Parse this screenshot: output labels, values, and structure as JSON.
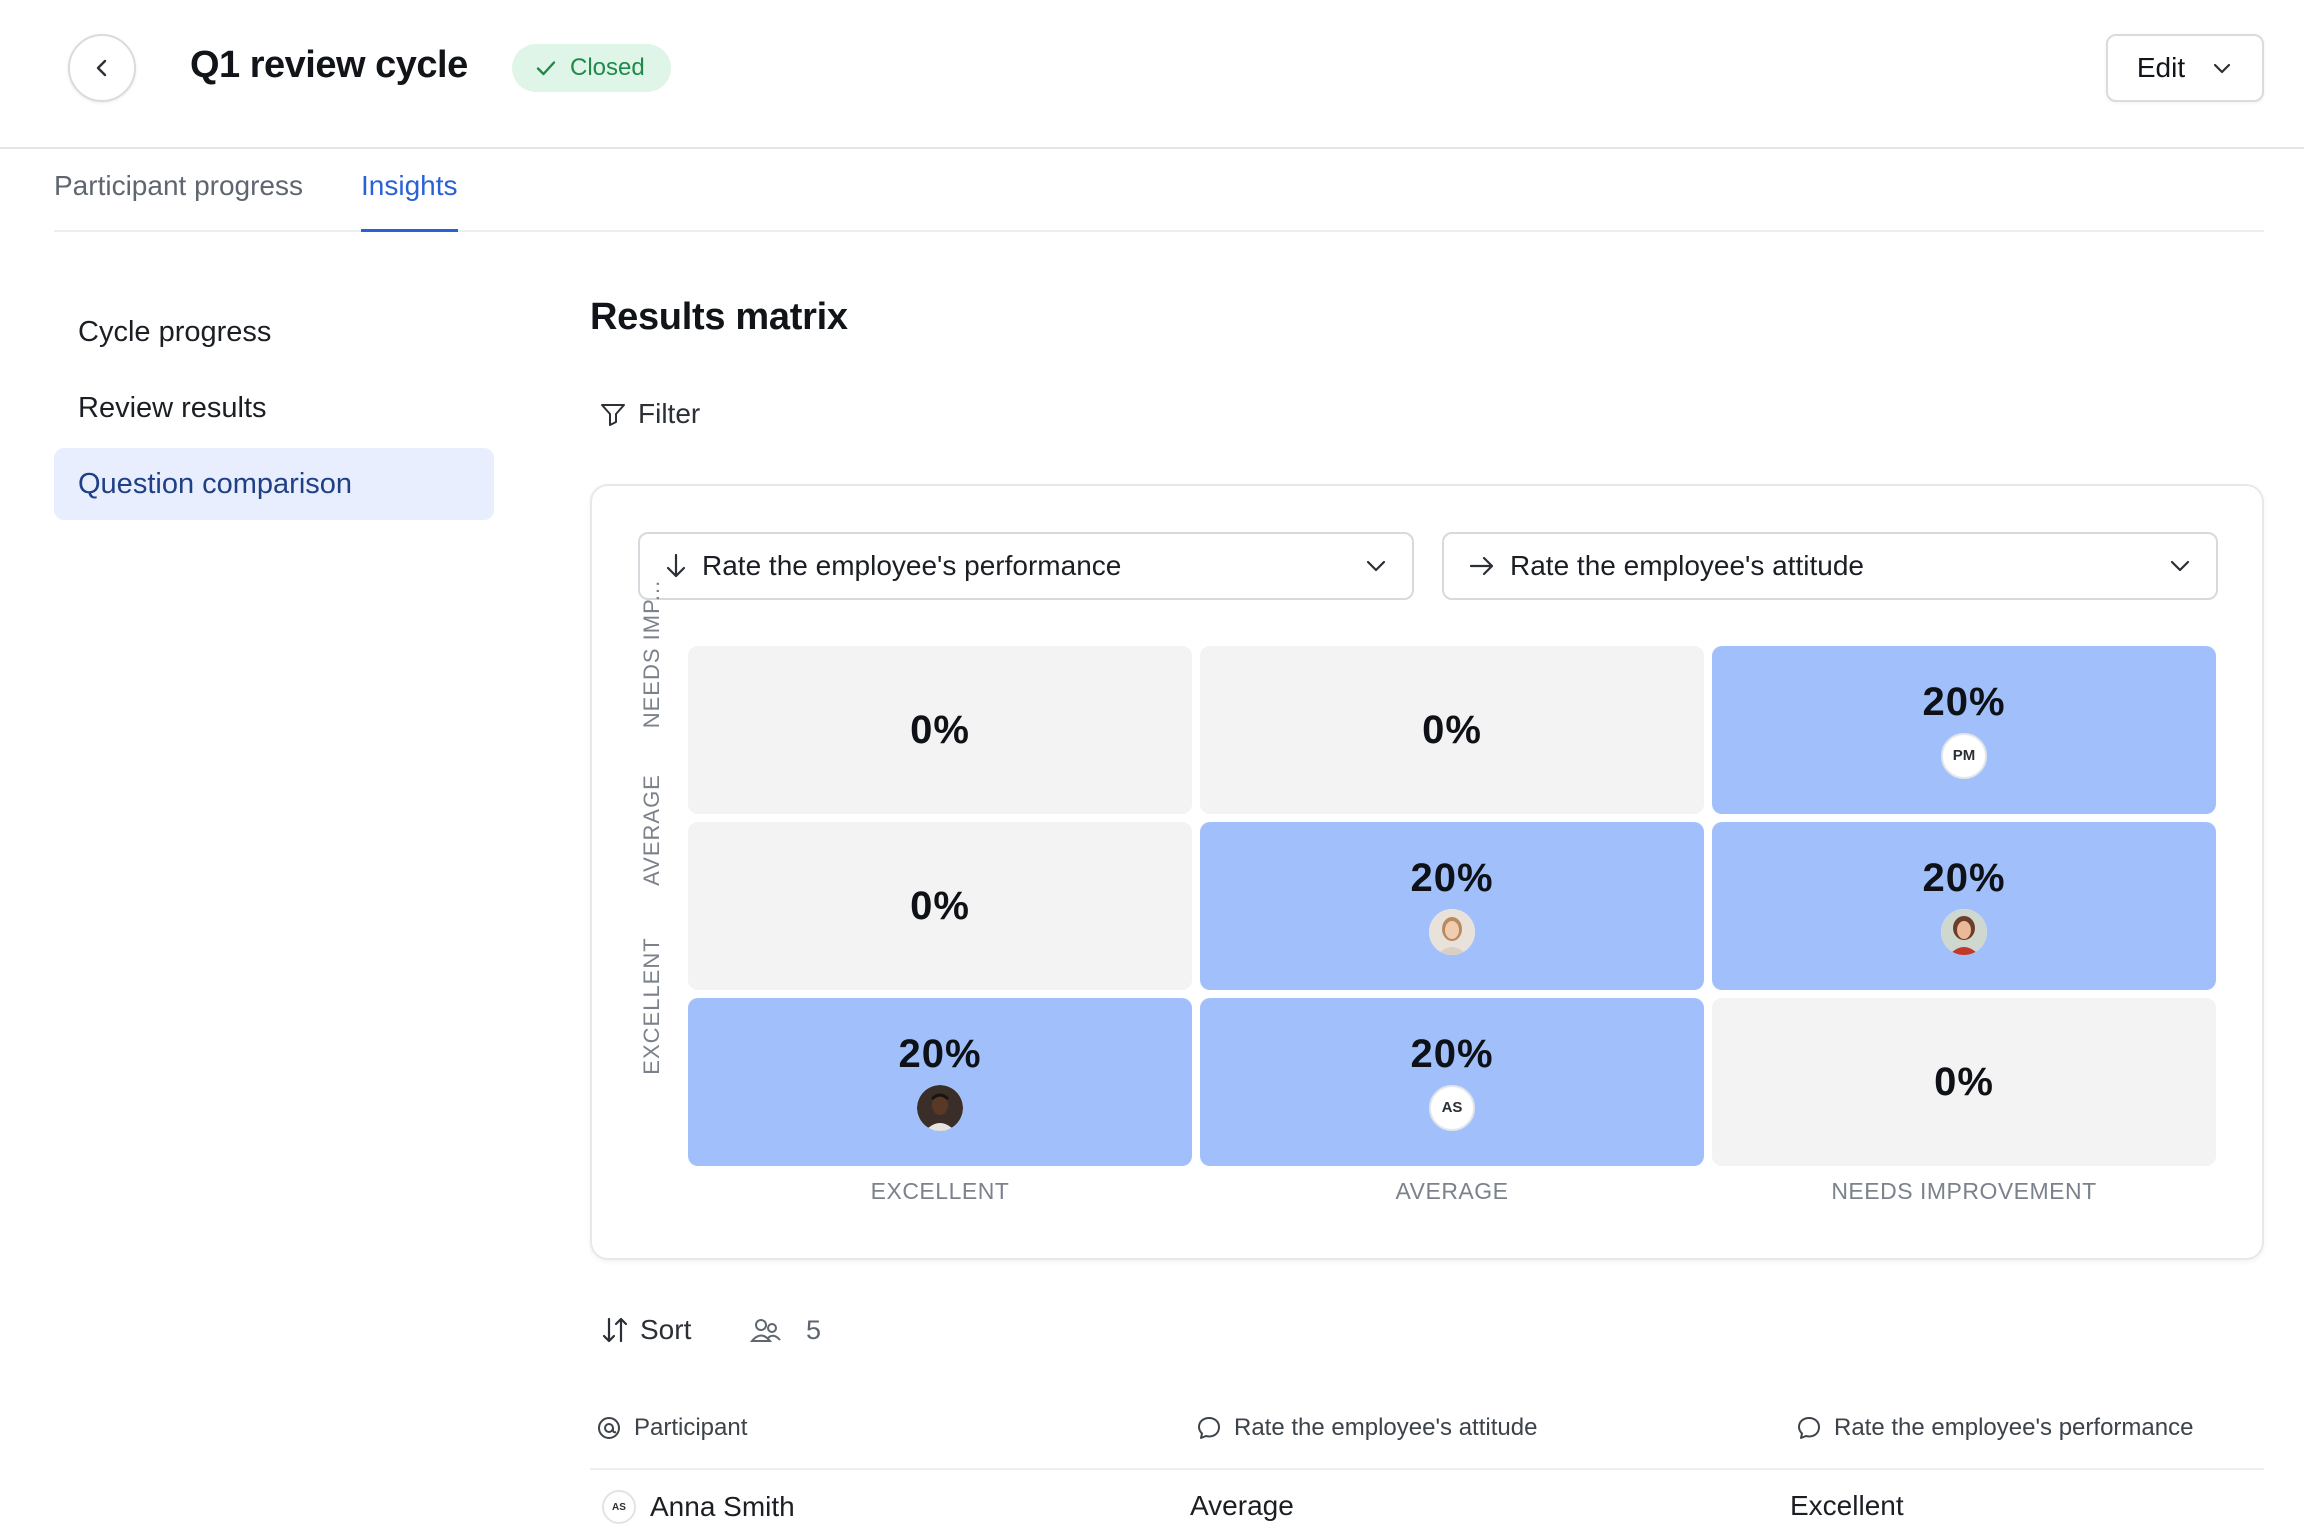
{
  "header": {
    "title": "Q1 review cycle",
    "status": "Closed",
    "edit_label": "Edit"
  },
  "tabs": [
    {
      "label": "Participant progress",
      "active": false
    },
    {
      "label": "Insights",
      "active": true
    }
  ],
  "sidebar": {
    "items": [
      {
        "label": "Cycle progress",
        "active": false
      },
      {
        "label": "Review results",
        "active": false
      },
      {
        "label": "Question comparison",
        "active": true
      }
    ]
  },
  "main": {
    "section_title": "Results matrix",
    "filter_label": "Filter",
    "y_question": "Rate the employee's performance",
    "x_question": "Rate the employee's attitude",
    "row_labels": [
      "NEEDS IMP...",
      "AVERAGE",
      "EXCELLENT"
    ],
    "col_labels": [
      "EXCELLENT",
      "AVERAGE",
      "NEEDS IMPROVEMENT"
    ],
    "cells": [
      [
        {
          "pct": "0%"
        },
        {
          "pct": "0%"
        },
        {
          "pct": "20%",
          "avatar": "PM"
        }
      ],
      [
        {
          "pct": "0%"
        },
        {
          "pct": "20%",
          "avatar": "photo-woman-1"
        },
        {
          "pct": "20%",
          "avatar": "photo-woman-2"
        }
      ],
      [
        {
          "pct": "20%",
          "avatar": "photo-man-1"
        },
        {
          "pct": "20%",
          "avatar": "AS"
        },
        {
          "pct": "0%"
        }
      ]
    ],
    "sort_label": "Sort",
    "participant_count": "5",
    "table": {
      "headers": [
        "Participant",
        "Rate the employee's attitude",
        "Rate the employee's performance"
      ],
      "rows": [
        {
          "initials": "AS",
          "participant": "Anna Smith",
          "attitude": "Average",
          "performance": "Excellent"
        }
      ]
    }
  },
  "colors": {
    "accent": "#2a62d6",
    "filled_cell": "#a1bffb",
    "empty_cell": "#f3f3f3",
    "status_bg": "#dff5e8",
    "status_text": "#1f8a4c"
  }
}
